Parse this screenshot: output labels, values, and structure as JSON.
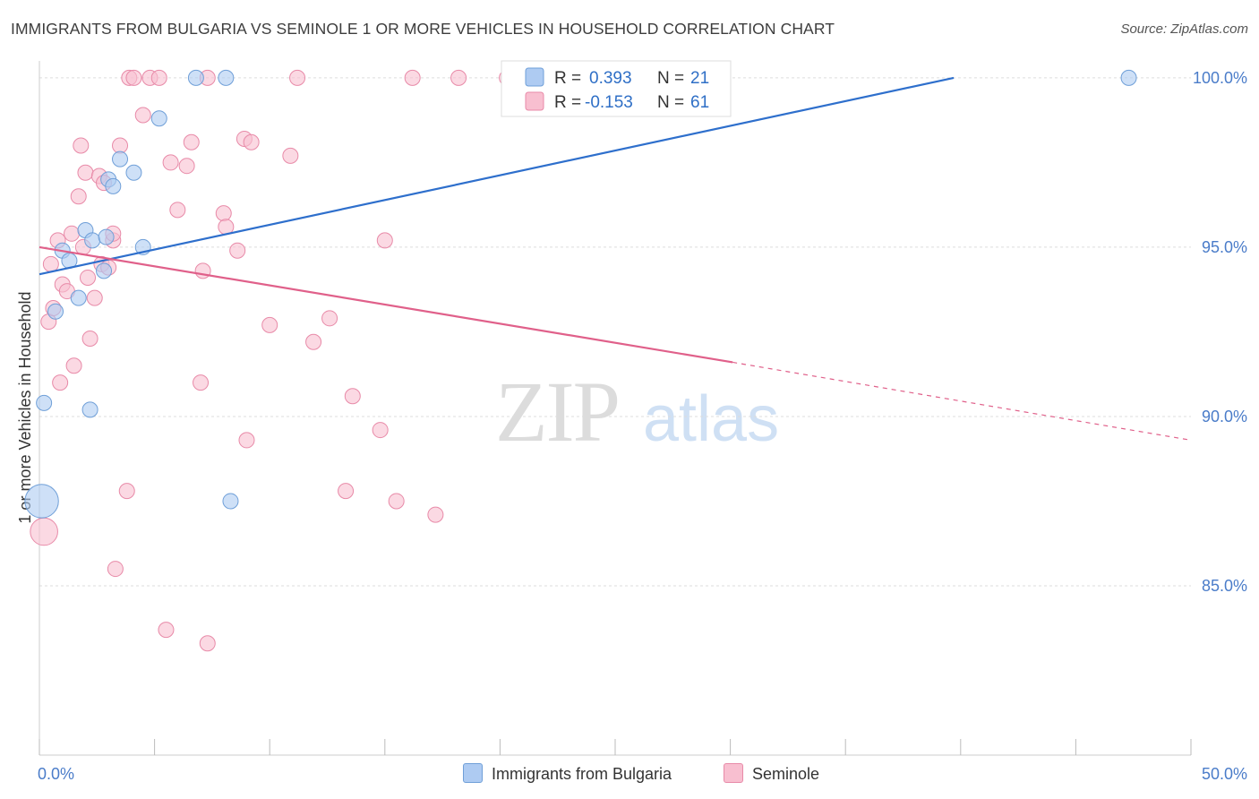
{
  "title": "IMMIGRANTS FROM BULGARIA VS SEMINOLE 1 OR MORE VEHICLES IN HOUSEHOLD CORRELATION CHART",
  "source": "Source: ZipAtlas.com",
  "watermark": {
    "zip": "ZIP",
    "atlas": "atlas"
  },
  "legend": {
    "r_label": "R =",
    "n_label": "N =",
    "rows": [
      {
        "r": "0.393",
        "n": "21"
      },
      {
        "r": "-0.153",
        "n": "61"
      }
    ]
  },
  "bottom_legend": [
    "Immigrants from Bulgaria",
    "Seminole"
  ],
  "colors": {
    "blue_fill": "#aecbf2",
    "blue_stroke": "#6f9fd8",
    "blue_line": "#2e6fcc",
    "pink_fill": "#f8bfd0",
    "pink_stroke": "#e88aa8",
    "pink_line": "#e0608a",
    "grid": "#dddddd",
    "tick_text": "#4a7cc9"
  },
  "chart_data": {
    "type": "scatter",
    "title": "IMMIGRANTS FROM BULGARIA VS SEMINOLE 1 OR MORE VEHICLES IN HOUSEHOLD CORRELATION CHART",
    "xlabel": "",
    "ylabel": "1 or more Vehicles in Household",
    "xlim": [
      0,
      50
    ],
    "ylim": [
      80.0,
      100.5
    ],
    "x_tick_labels": [
      "0.0%",
      "50.0%"
    ],
    "y_ticks": [
      85,
      90,
      95,
      100
    ],
    "y_tick_labels": [
      "85.0%",
      "90.0%",
      "95.0%",
      "100.0%"
    ],
    "grid": true,
    "legend_position": "top-center",
    "series": [
      {
        "name": "Immigrants from Bulgaria",
        "color": "#aecbf2",
        "x": [
          0.2,
          0.7,
          1.0,
          1.3,
          1.7,
          2.0,
          2.2,
          2.3,
          2.8,
          2.9,
          3.0,
          3.2,
          3.5,
          4.1,
          4.5,
          5.2,
          6.8,
          8.1,
          8.3,
          47.3,
          0.1
        ],
        "y": [
          90.4,
          93.1,
          94.9,
          94.6,
          93.5,
          95.5,
          90.2,
          95.2,
          94.3,
          95.3,
          97.0,
          96.8,
          97.6,
          97.2,
          95.0,
          98.8,
          100.0,
          100.0,
          87.5,
          100.0,
          87.5
        ],
        "sizes": [
          1,
          1,
          1,
          1,
          1,
          1,
          1,
          1,
          1,
          1,
          1,
          1,
          1,
          1,
          1,
          1,
          1,
          1,
          1,
          1,
          2.2
        ],
        "trend": {
          "x": [
            0,
            39.7
          ],
          "y": [
            94.2,
            100.0
          ]
        }
      },
      {
        "name": "Seminole",
        "color": "#f8bfd0",
        "x": [
          0.2,
          0.4,
          0.5,
          0.6,
          0.8,
          0.9,
          1.0,
          1.2,
          1.4,
          1.5,
          1.7,
          1.8,
          1.9,
          2.0,
          2.1,
          2.2,
          2.4,
          2.6,
          2.7,
          2.8,
          3.0,
          3.2,
          3.2,
          3.3,
          3.5,
          3.8,
          3.9,
          4.1,
          4.5,
          4.8,
          5.2,
          5.5,
          5.7,
          6.0,
          6.4,
          6.6,
          7.0,
          7.1,
          7.3,
          7.3,
          8.0,
          8.1,
          8.6,
          8.9,
          9.0,
          9.2,
          10.0,
          10.9,
          11.2,
          11.9,
          12.6,
          13.3,
          13.6,
          14.8,
          15.0,
          15.5,
          16.2,
          17.2,
          18.2,
          20.3,
          26.3
        ],
        "y": [
          86.6,
          92.8,
          94.5,
          93.2,
          95.2,
          91.0,
          93.9,
          93.7,
          95.4,
          91.5,
          96.5,
          98.0,
          95.0,
          97.2,
          94.1,
          92.3,
          93.5,
          97.1,
          94.5,
          96.9,
          94.4,
          95.2,
          95.4,
          85.5,
          98.0,
          87.8,
          100.0,
          100.0,
          98.9,
          100.0,
          100.0,
          83.7,
          97.5,
          96.1,
          97.4,
          98.1,
          91.0,
          94.3,
          100.0,
          83.3,
          96.0,
          95.6,
          94.9,
          98.2,
          89.3,
          98.1,
          92.7,
          97.7,
          100.0,
          92.2,
          92.9,
          87.8,
          90.6,
          89.6,
          95.2,
          87.5,
          100.0,
          87.1,
          100.0,
          100.0,
          100.0
        ],
        "sizes": [
          1.8,
          1,
          1,
          1,
          1,
          1,
          1,
          1,
          1,
          1,
          1,
          1,
          1,
          1,
          1,
          1,
          1,
          1,
          1,
          1,
          1,
          1,
          1,
          1,
          1,
          1,
          1,
          1,
          1,
          1,
          1,
          1,
          1,
          1,
          1,
          1,
          1,
          1,
          1,
          1,
          1,
          1,
          1,
          1,
          1,
          1,
          1,
          1,
          1,
          1,
          1,
          1,
          1,
          1,
          1,
          1,
          1,
          1,
          1,
          1,
          1
        ],
        "trend": {
          "x": [
            0,
            30.1
          ],
          "y": [
            95.0,
            91.6
          ]
        },
        "trend_dashed": {
          "x": [
            30.1,
            50
          ],
          "y": [
            91.6,
            89.3
          ]
        }
      }
    ]
  }
}
